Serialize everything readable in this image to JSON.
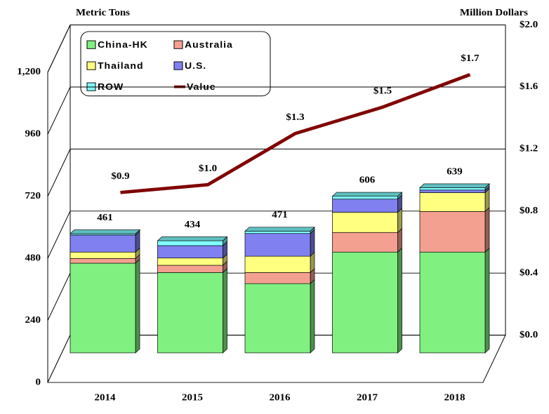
{
  "chart_data": {
    "type": "bar",
    "y_axis_label": "Metric Tons",
    "y2_axis_label": "Million Dollars",
    "categories": [
      "2014",
      "2015",
      "2016",
      "2017",
      "2018"
    ],
    "series": [
      {
        "name": "China-HK",
        "color": "#80f080",
        "values": [
          347,
          311,
          268,
          390,
          390
        ]
      },
      {
        "name": "Australia",
        "color": "#f4a090",
        "values": [
          18,
          28,
          43,
          76,
          157
        ]
      },
      {
        "name": "Thailand",
        "color": "#ffff80",
        "values": [
          25,
          28,
          63,
          78,
          73
        ]
      },
      {
        "name": "U.S.",
        "color": "#8080f0",
        "values": [
          66,
          48,
          88,
          51,
          10
        ]
      },
      {
        "name": "ROW",
        "color": "#80ffff",
        "values": [
          5,
          19,
          9,
          11,
          9
        ]
      },
      {
        "name": "Value",
        "color": "#800000",
        "axis": "y2",
        "type": "line",
        "values": [
          0.92,
          0.97,
          1.3,
          1.47,
          1.68
        ],
        "value_labels": [
          "$0.9",
          "$1.0",
          "$1.3",
          "$1.5",
          "$1.7"
        ]
      }
    ],
    "totals": [
      461,
      434,
      471,
      606,
      639
    ],
    "ylim": [
      0,
      1200
    ],
    "yticks": [
      0,
      240,
      480,
      720,
      960,
      {
        "value": 1200,
        "label": "1,200"
      }
    ],
    "y2lim": [
      0,
      2.0
    ],
    "y2ticks": [
      {
        "value": 0,
        "label": "$0.0"
      },
      {
        "value": 0.4,
        "label": "$0.4"
      },
      {
        "value": 0.8,
        "label": "$0.8"
      },
      {
        "value": 1.2,
        "label": "$1.2"
      },
      {
        "value": 1.6,
        "label": "$1.6"
      },
      {
        "value": 2.0,
        "label": "$2.0"
      }
    ],
    "grid": true,
    "legend": "top-left"
  }
}
